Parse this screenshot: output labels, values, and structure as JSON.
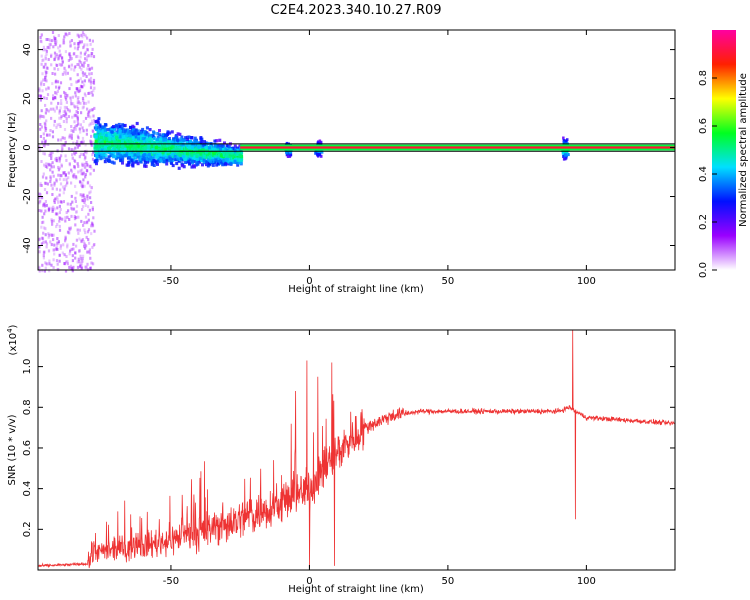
{
  "title": "C2E4.2023.340.10.27.R09",
  "chart_data": [
    {
      "type": "heatmap",
      "title": "C2E4.2023.340.10.27.R09",
      "xlabel": "Height of straight line (km)",
      "ylabel": "Frequency (Hz)",
      "xlim": [
        -98,
        132
      ],
      "ylim": [
        -50,
        48
      ],
      "x_ticks": [
        -50,
        0,
        50,
        100
      ],
      "x_tick_labels": [
        "-50",
        "0",
        "50",
        "100"
      ],
      "y_ticks": [
        -40,
        -20,
        0,
        20,
        40
      ],
      "y_tick_labels": [
        "-40",
        "-20",
        "0",
        "20",
        "40"
      ],
      "colorbar": {
        "label": "Normalized spectral amplitude",
        "range": [
          0,
          1
        ],
        "ticks": [
          0.0,
          0.2,
          0.4,
          0.6,
          0.8
        ],
        "tick_labels": [
          "0.0",
          "0.2",
          "0.4",
          "0.6",
          "0.8"
        ],
        "colors": [
          "#ffffff",
          "#9a00ff",
          "#0010ff",
          "#00e0ff",
          "#00ff20",
          "#ffff00",
          "#ff2000",
          "#ff00a0"
        ]
      },
      "features": {
        "carrier_line": {
          "frequency": 0,
          "x_range": [
            -25,
            132
          ],
          "amplitude": 0.9
        },
        "reference_lines_hz": [
          -1.5,
          1.5
        ],
        "broadband_region": {
          "x_range": [
            -98,
            -78
          ],
          "frequency_spread": [
            -50,
            48
          ],
          "amplitude": 0.1
        },
        "noisy_region": {
          "x_range": [
            -78,
            -25
          ],
          "frequency_spread_start": 12,
          "frequency_spread_end": 5,
          "amplitude": 0.4
        },
        "bursts": [
          {
            "x": -8,
            "spread": 4,
            "amplitude": 0.5
          },
          {
            "x": 3,
            "spread": 4,
            "amplitude": 0.5
          },
          {
            "x": 92,
            "spread": 5,
            "amplitude": 0.55
          }
        ]
      },
      "grid": false
    },
    {
      "type": "line",
      "xlabel": "Height of straight line (km)",
      "ylabel": "SNR (10 * v/v)",
      "y_multiplier_label": "(x10",
      "y_multiplier_exp": "4",
      "y_multiplier_close": ")",
      "xlim": [
        -98,
        132
      ],
      "ylim": [
        0,
        1.18
      ],
      "x_ticks": [
        -50,
        0,
        50,
        100
      ],
      "x_tick_labels": [
        "-50",
        "0",
        "50",
        "100"
      ],
      "y_ticks": [
        0.2,
        0.4,
        0.6,
        0.8,
        1.0
      ],
      "y_tick_labels": [
        "0.2",
        "0.4",
        "0.6",
        "0.8",
        "1.0"
      ],
      "line_color": "#ee3333",
      "trend": {
        "x": [
          -98,
          -80,
          -78,
          -60,
          -40,
          -25,
          -10,
          0,
          10,
          20,
          30,
          40,
          50,
          70,
          90,
          94,
          96,
          100,
          132
        ],
        "y": [
          0.02,
          0.03,
          0.08,
          0.12,
          0.18,
          0.25,
          0.33,
          0.4,
          0.58,
          0.7,
          0.76,
          0.78,
          0.78,
          0.78,
          0.78,
          0.8,
          0.78,
          0.75,
          0.72
        ]
      },
      "spikes": [
        {
          "x": -5,
          "y": 0.88
        },
        {
          "x": -1,
          "y": 1.03
        },
        {
          "x": 0,
          "y": 0.01
        },
        {
          "x": 3,
          "y": 0.95
        },
        {
          "x": 8,
          "y": 1.02
        },
        {
          "x": 9,
          "y": 0.02
        },
        {
          "x": 95,
          "y": 1.18
        },
        {
          "x": 96,
          "y": 0.25
        }
      ],
      "grid": false
    }
  ]
}
